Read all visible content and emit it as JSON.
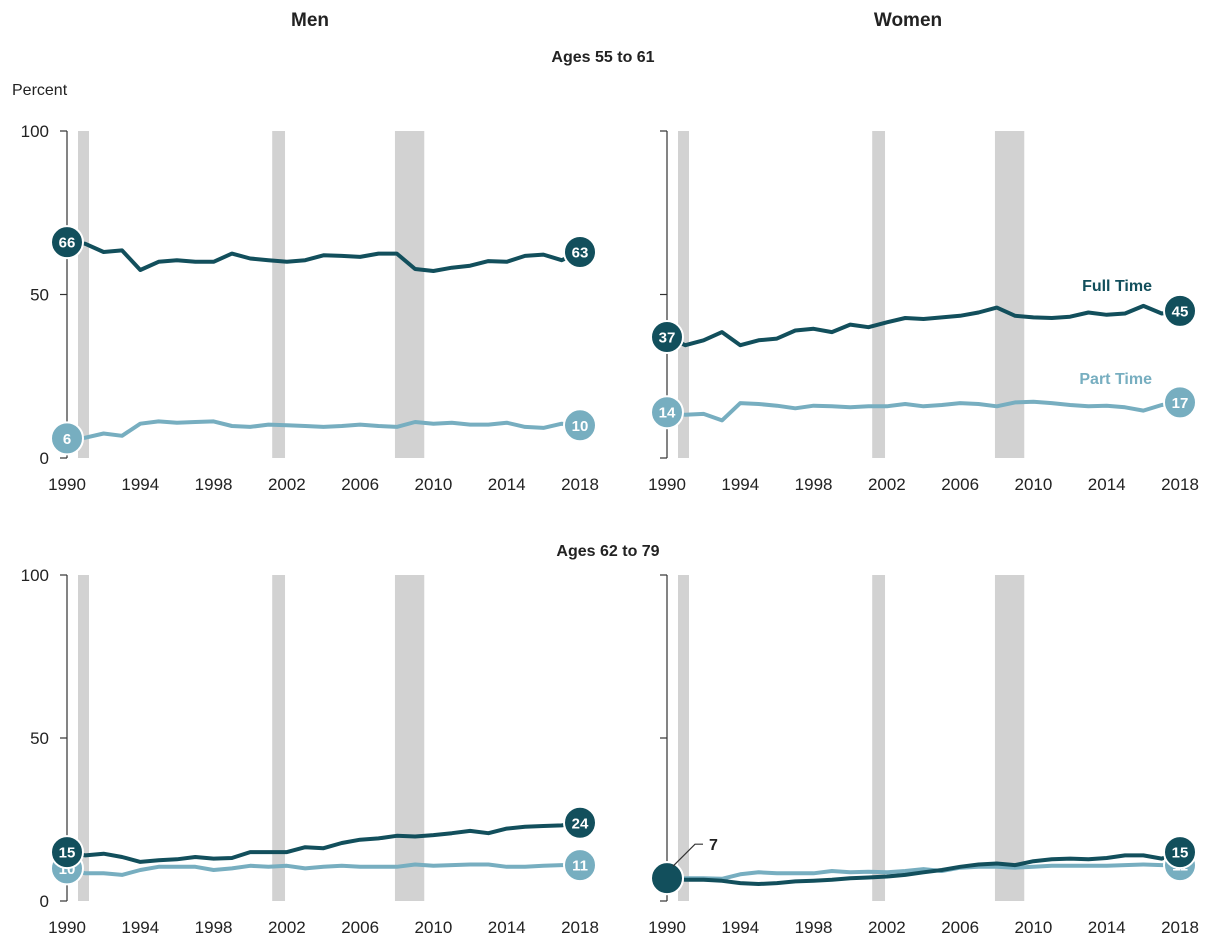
{
  "titles": {
    "col_left": "Men",
    "col_right": "Women",
    "row_top": "Ages 55 to 61",
    "row_bottom": "Ages 62 to 79",
    "y_unit": "Percent"
  },
  "colors": {
    "full_time": "#124f5c",
    "part_time": "#77aec0",
    "recession_band": "#d2d2d2",
    "axis": "#333333"
  },
  "chart_data": [
    {
      "type": "line",
      "panel": "men-55-61",
      "x": [
        1990,
        1991,
        1992,
        1993,
        1994,
        1995,
        1996,
        1997,
        1998,
        1999,
        2000,
        2001,
        2002,
        2003,
        2004,
        2005,
        2006,
        2007,
        2008,
        2009,
        2010,
        2011,
        2012,
        2013,
        2014,
        2015,
        2016,
        2017,
        2018
      ],
      "series": [
        {
          "name": "Full Time",
          "values": [
            66,
            65.5,
            63,
            63.5,
            57.5,
            60,
            60.5,
            60,
            60,
            62.5,
            61,
            60.5,
            60,
            60.5,
            62,
            61.8,
            61.5,
            62.5,
            62.5,
            57.8,
            57.2,
            58.2,
            58.8,
            60.2,
            60,
            61.8,
            62.2,
            60.5,
            63
          ]
        },
        {
          "name": "Part Time",
          "values": [
            6,
            6.2,
            7.5,
            6.8,
            10.5,
            11.2,
            10.8,
            11,
            11.2,
            9.8,
            9.5,
            10.2,
            10,
            9.8,
            9.5,
            9.8,
            10.2,
            9.8,
            9.5,
            11,
            10.5,
            10.8,
            10.2,
            10.2,
            10.8,
            9.5,
            9.2,
            10.5,
            10
          ]
        }
      ],
      "ylim": [
        0,
        100
      ],
      "y_ticks": [
        0,
        50,
        100
      ],
      "x_ticks": [
        1990,
        1994,
        1998,
        2002,
        2006,
        2010,
        2014,
        2018
      ],
      "recessions": [
        [
          1990.6,
          1991.2
        ],
        [
          2001.2,
          2001.9
        ],
        [
          2007.9,
          2009.5
        ]
      ],
      "start_labels": [
        "66",
        "6"
      ],
      "end_labels": [
        "63",
        "10"
      ]
    },
    {
      "type": "line",
      "panel": "women-55-61",
      "x": [
        1990,
        1991,
        1992,
        1993,
        1994,
        1995,
        1996,
        1997,
        1998,
        1999,
        2000,
        2001,
        2002,
        2003,
        2004,
        2005,
        2006,
        2007,
        2008,
        2009,
        2010,
        2011,
        2012,
        2013,
        2014,
        2015,
        2016,
        2017,
        2018
      ],
      "series": [
        {
          "name": "Full Time",
          "values": [
            37,
            34.5,
            36,
            38.5,
            34.5,
            36,
            36.5,
            39,
            39.5,
            38.5,
            40.8,
            40,
            41.5,
            42.8,
            42.5,
            43,
            43.5,
            44.5,
            46,
            43.5,
            43,
            42.8,
            43.2,
            44.5,
            43.8,
            44.2,
            46.5,
            44.2,
            45
          ]
        },
        {
          "name": "Part Time",
          "values": [
            14,
            13.2,
            13.5,
            11.5,
            16.8,
            16.5,
            16,
            15.2,
            16,
            15.8,
            15.5,
            15.8,
            15.8,
            16.5,
            15.8,
            16.2,
            16.8,
            16.5,
            15.8,
            17,
            17.2,
            16.8,
            16.2,
            15.8,
            16,
            15.5,
            14.5,
            16.2,
            17
          ]
        }
      ],
      "ylim": [
        0,
        100
      ],
      "y_ticks": [
        0,
        50,
        100
      ],
      "x_ticks": [
        1990,
        1994,
        1998,
        2002,
        2006,
        2010,
        2014,
        2018
      ],
      "recessions": [
        [
          1990.6,
          1991.2
        ],
        [
          2001.2,
          2001.9
        ],
        [
          2007.9,
          2009.5
        ]
      ],
      "start_labels": [
        "37",
        "14"
      ],
      "end_labels": [
        "45",
        "17"
      ],
      "series_labels": [
        "Full Time",
        "Part Time"
      ]
    },
    {
      "type": "line",
      "panel": "men-62-79",
      "x": [
        1990,
        1991,
        1992,
        1993,
        1994,
        1995,
        1996,
        1997,
        1998,
        1999,
        2000,
        2001,
        2002,
        2003,
        2004,
        2005,
        2006,
        2007,
        2008,
        2009,
        2010,
        2011,
        2012,
        2013,
        2014,
        2015,
        2016,
        2017,
        2018
      ],
      "series": [
        {
          "name": "Full Time",
          "values": [
            15,
            14,
            14.5,
            13.5,
            12,
            12.5,
            12.8,
            13.5,
            13,
            13.2,
            15,
            15,
            15,
            16.5,
            16.2,
            17.8,
            18.8,
            19.2,
            20,
            19.8,
            20.2,
            20.8,
            21.5,
            20.8,
            22.2,
            22.8,
            23,
            23.2,
            24
          ]
        },
        {
          "name": "Part Time",
          "values": [
            10,
            8.5,
            8.5,
            8,
            9.5,
            10.5,
            10.5,
            10.5,
            9.5,
            10,
            10.8,
            10.5,
            10.8,
            10,
            10.5,
            10.8,
            10.5,
            10.5,
            10.5,
            11.2,
            10.8,
            11,
            11.2,
            11.2,
            10.5,
            10.5,
            10.8,
            11,
            11
          ]
        }
      ],
      "ylim": [
        0,
        100
      ],
      "y_ticks": [
        0,
        50,
        100
      ],
      "x_ticks": [
        1990,
        1994,
        1998,
        2002,
        2006,
        2010,
        2014,
        2018
      ],
      "recessions": [
        [
          1990.6,
          1991.2
        ],
        [
          2001.2,
          2001.9
        ],
        [
          2007.9,
          2009.5
        ]
      ],
      "start_labels": [
        "15",
        "10"
      ],
      "end_labels": [
        "24",
        "11"
      ]
    },
    {
      "type": "line",
      "panel": "women-62-79",
      "x": [
        1990,
        1991,
        1992,
        1993,
        1994,
        1995,
        1996,
        1997,
        1998,
        1999,
        2000,
        2001,
        2002,
        2003,
        2004,
        2005,
        2006,
        2007,
        2008,
        2009,
        2010,
        2011,
        2012,
        2013,
        2014,
        2015,
        2016,
        2017,
        2018
      ],
      "series": [
        {
          "name": "Full Time",
          "values": [
            7,
            6.5,
            6.5,
            6.2,
            5.5,
            5.2,
            5.5,
            6,
            6.2,
            6.5,
            7,
            7.2,
            7.5,
            8,
            8.8,
            9.5,
            10.5,
            11.2,
            11.5,
            11,
            12.2,
            12.8,
            13,
            12.8,
            13.2,
            14,
            14,
            13,
            15
          ]
        },
        {
          "name": "Part Time",
          "values": [
            7,
            7,
            7,
            6.8,
            8.2,
            8.8,
            8.5,
            8.5,
            8.5,
            9.2,
            8.8,
            9,
            8.8,
            9.2,
            9.8,
            9.2,
            10.2,
            10.5,
            10.5,
            10.2,
            10.5,
            10.8,
            10.8,
            10.8,
            10.8,
            11,
            11.2,
            11,
            11
          ]
        }
      ],
      "ylim": [
        0,
        100
      ],
      "y_ticks": [
        0,
        50,
        100
      ],
      "x_ticks": [
        1990,
        1994,
        1998,
        2002,
        2006,
        2010,
        2014,
        2018
      ],
      "recessions": [
        [
          1990.6,
          1991.2
        ],
        [
          2001.2,
          2001.9
        ],
        [
          2007.9,
          2009.5
        ]
      ],
      "start_labels": [
        "",
        "7"
      ],
      "end_labels": [
        "15",
        "11"
      ],
      "annotation": "7"
    }
  ]
}
